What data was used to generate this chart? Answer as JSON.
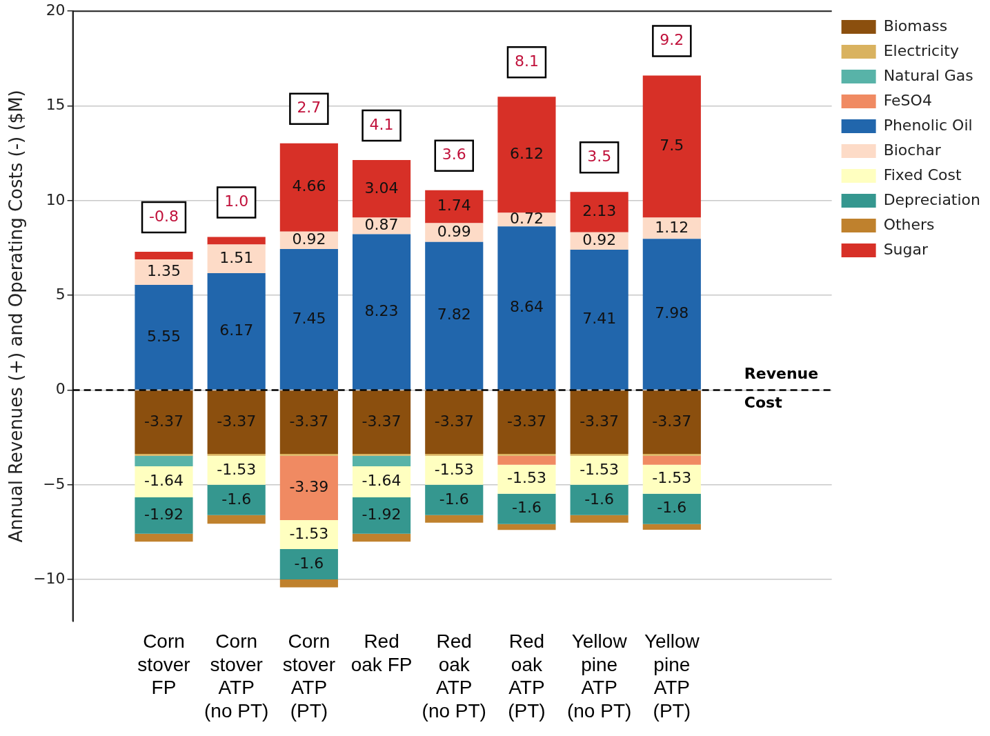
{
  "chart_data": {
    "type": "bar",
    "stacked": true,
    "ylabel": "Annual Revenues (+) and Operating Costs (-) ($M)",
    "categories": [
      "Corn stover FP",
      "Corn stover ATP (no PT)",
      "Corn stover ATP (PT)",
      "Red oak FP",
      "Red oak ATP (no PT)",
      "Red oak ATP (PT)",
      "Yellow pine ATP (no PT)",
      "Yellow pine ATP (PT)"
    ],
    "ylim": [
      -12.2,
      20
    ],
    "yticks": [
      -10,
      -5,
      0,
      5,
      10,
      15,
      20
    ],
    "grid": "y",
    "legend": "top right",
    "series": [
      {
        "name": "Biomass",
        "color": "#8b4f0e",
        "values": [
          -3.37,
          -3.37,
          -3.37,
          -3.37,
          -3.37,
          -3.37,
          -3.37,
          -3.37
        ],
        "value_labels": [
          "-3.37",
          "-3.37",
          "-3.37",
          "-3.37",
          "-3.37",
          "-3.37",
          "-3.37",
          "-3.37"
        ]
      },
      {
        "name": "Electricity",
        "color": "#d9b25f",
        "values": [
          -0.1,
          -0.1,
          -0.1,
          -0.1,
          -0.1,
          -0.1,
          -0.1,
          -0.1
        ]
      },
      {
        "name": "Natural Gas",
        "color": "#58b3a8",
        "values": [
          -0.55,
          null,
          null,
          -0.55,
          null,
          null,
          null,
          null
        ]
      },
      {
        "name": "FeSO4",
        "color": "#f08a62",
        "values": [
          null,
          null,
          -3.39,
          null,
          null,
          -0.47,
          null,
          -0.47
        ],
        "value_labels": [
          null,
          null,
          "-3.39",
          null,
          null,
          null,
          null,
          null
        ]
      },
      {
        "name": "Phenolic Oil",
        "color": "#2166ac",
        "values": [
          5.55,
          6.17,
          7.45,
          8.23,
          7.82,
          8.64,
          7.41,
          7.98
        ],
        "value_labels": [
          "5.55",
          "6.17",
          "7.45",
          "8.23",
          "7.82",
          "8.64",
          "7.41",
          "7.98"
        ]
      },
      {
        "name": "Biochar",
        "color": "#fddbc7",
        "values": [
          1.35,
          1.51,
          0.92,
          0.87,
          0.99,
          0.72,
          0.92,
          1.12
        ],
        "value_labels": [
          "1.35",
          "1.51",
          "0.92",
          "0.87",
          "0.99",
          "0.72",
          "0.92",
          "1.12"
        ]
      },
      {
        "name": "Fixed Cost",
        "color": "#ffffc0",
        "values": [
          -1.64,
          -1.53,
          -1.53,
          -1.64,
          -1.53,
          -1.53,
          -1.53,
          -1.53
        ],
        "value_labels": [
          "-1.64",
          "-1.53",
          "-1.53",
          "-1.64",
          "-1.53",
          "-1.53",
          "-1.53",
          "-1.53"
        ]
      },
      {
        "name": "Depreciation",
        "color": "#35978f",
        "values": [
          -1.92,
          -1.6,
          -1.6,
          -1.92,
          -1.6,
          -1.6,
          -1.6,
          -1.6
        ],
        "value_labels": [
          "-1.92",
          "-1.6",
          "-1.6",
          "-1.92",
          "-1.6",
          "-1.6",
          "-1.6",
          "-1.6"
        ]
      },
      {
        "name": "Others",
        "color": "#bf812d",
        "values": [
          -0.42,
          -0.45,
          -0.42,
          -0.42,
          -0.4,
          -0.31,
          -0.4,
          -0.3
        ]
      },
      {
        "name": "Sugar",
        "color": "#d73027",
        "values": [
          0.4,
          0.4,
          4.66,
          3.04,
          1.74,
          6.12,
          2.13,
          7.5
        ],
        "value_labels": [
          null,
          null,
          "4.66",
          "3.04",
          "1.74",
          "6.12",
          "2.13",
          "7.5"
        ]
      }
    ],
    "ref_lines": [
      {
        "axis": "y",
        "value": 0,
        "color": "#000000",
        "line_style": "dashed"
      }
    ],
    "annotations": [
      "-0.8",
      "1.0",
      "2.7",
      "4.1",
      "3.6",
      "8.1",
      "3.5",
      "9.2",
      "Revenue",
      "Cost"
    ]
  }
}
